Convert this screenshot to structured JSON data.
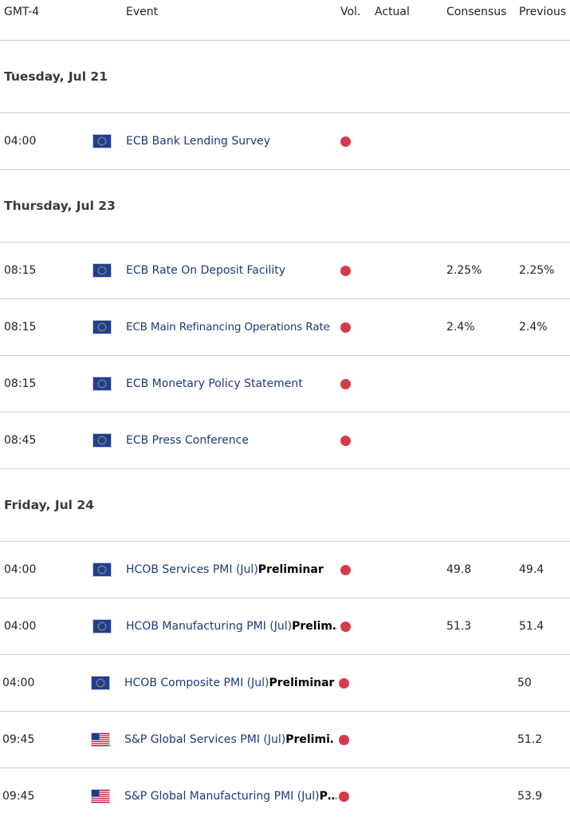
{
  "header": {
    "timezone": "GMT-4",
    "event": "Event",
    "vol": "Vol.",
    "actual": "Actual",
    "consensus": "Consensus",
    "previous": "Previous"
  },
  "colors": {
    "volume_high": "#d63a4a",
    "event_text": "#1c3a7a",
    "divider": "#cfcfcf"
  },
  "days": [
    {
      "label": "Tuesday, Jul 21"
    },
    {
      "label": "Thursday, Jul 23"
    },
    {
      "label": "Friday, Jul 24"
    }
  ],
  "events": [
    {
      "time": "04:00",
      "flag": "eu-flag-icon",
      "name": "ECB Bank Lending Survey",
      "extra": "",
      "volume": "high",
      "actual": "",
      "consensus": "",
      "previous": ""
    },
    {
      "time": "08:15",
      "flag": "eu-flag-icon",
      "name": "ECB Rate On Deposit Facility",
      "extra": "",
      "volume": "high",
      "actual": "",
      "consensus": "2.25%",
      "previous": "2.25%"
    },
    {
      "time": "08:15",
      "flag": "eu-flag-icon",
      "name": "ECB Main Refinancing Operations Rate",
      "extra": "",
      "volume": "high",
      "actual": "",
      "consensus": "2.4%",
      "previous": "2.4%"
    },
    {
      "time": "08:15",
      "flag": "eu-flag-icon",
      "name": "ECB Monetary Policy Statement",
      "extra": "",
      "volume": "high",
      "actual": "",
      "consensus": "",
      "previous": ""
    },
    {
      "time": "08:45",
      "flag": "eu-flag-icon",
      "name": "ECB Press Conference",
      "extra": "",
      "volume": "high",
      "actual": "",
      "consensus": "",
      "previous": ""
    },
    {
      "time": "04:00",
      "flag": "eu-flag-icon",
      "name": "HCOB Services PMI (Jul)",
      "extra": "Preliminar",
      "volume": "high",
      "actual": "",
      "consensus": "49.8",
      "previous": "49.4"
    },
    {
      "time": "04:00",
      "flag": "eu-flag-icon",
      "name": "HCOB Manufacturing PMI (Jul)",
      "extra": "Prelim…",
      "volume": "high",
      "actual": "",
      "consensus": "51.3",
      "previous": "51.4"
    },
    {
      "time": "04:00",
      "flag": "eu-flag-icon",
      "name": "HCOB Composite PMI (Jul)",
      "extra": "Preliminar",
      "volume": "high",
      "actual": "",
      "consensus": "",
      "previous": "50"
    },
    {
      "time": "09:45",
      "flag": "us-flag-icon",
      "name": "S&P Global Services PMI (Jul)",
      "extra": "Prelimi…",
      "volume": "high",
      "actual": "",
      "consensus": "",
      "previous": "51.2"
    },
    {
      "time": "09:45",
      "flag": "us-flag-icon",
      "name": "S&P Global Manufacturing PMI (Jul)",
      "extra": "P…",
      "volume": "high",
      "actual": "",
      "consensus": "",
      "previous": "53.9"
    }
  ]
}
